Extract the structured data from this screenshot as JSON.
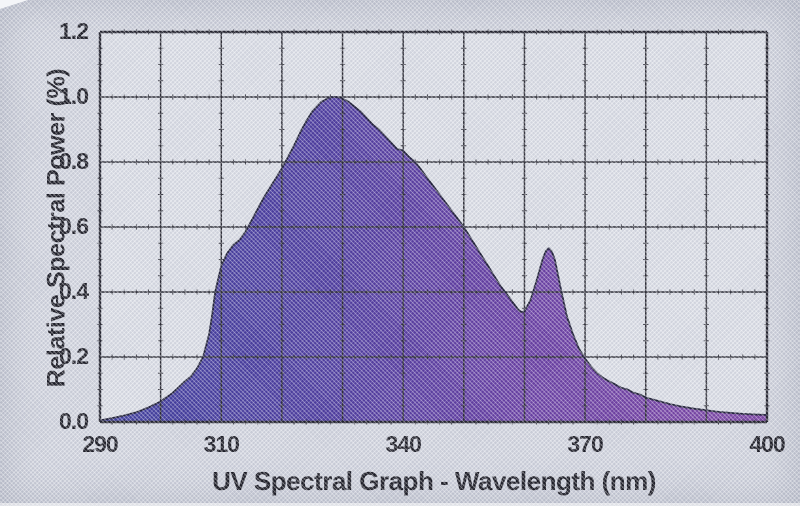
{
  "colors": {
    "page_background": "#d4d7e1",
    "plot_background": "#dde0e8",
    "grid_line": "#26262f",
    "plot_border": "#1d1d28",
    "curve_line": "#1a1a33",
    "fill_gradient_left": "#3b3a9e",
    "fill_gradient_mid": "#5639a1",
    "fill_gradient_right": "#7d42a6",
    "text": "#15151e"
  },
  "chart_data": {
    "type": "area",
    "title": "UV Spectral Graph - Wavelength (nm)",
    "xlabel": "UV Spectral Graph - Wavelength (nm)",
    "ylabel": "Relative Spectral Power (%)",
    "xlim": [
      290,
      400
    ],
    "ylim": [
      0,
      1.2
    ],
    "x_tick_labels": [
      "290",
      "310",
      "340",
      "370",
      "400"
    ],
    "x_tick_values": [
      290,
      310,
      340,
      370,
      400
    ],
    "y_tick_labels": [
      "0.0",
      "0.2",
      "0.4",
      "0.6",
      "0.8",
      "1.0",
      "1.2"
    ],
    "y_tick_values": [
      0,
      0.2,
      0.4,
      0.6,
      0.8,
      1.0,
      1.2
    ],
    "x_major_grid_step": 10,
    "y_major_grid_step": 0.2,
    "x_minor_tick_step": 2,
    "y_minor_tick_step": 0.05,
    "grid": true,
    "legend": null,
    "features": {
      "main_peak": {
        "x": 329,
        "y": 1.0
      },
      "shoulder": {
        "x": 312,
        "y": 0.55
      },
      "dip": {
        "x": 360,
        "y": 0.34
      },
      "secondary_peak": {
        "x": 364,
        "y": 0.535
      }
    },
    "x": [
      290,
      292,
      294,
      296,
      298,
      300,
      302,
      304,
      305,
      306,
      307,
      308,
      308.5,
      309,
      309.5,
      310,
      311,
      312,
      313,
      314,
      315,
      316,
      317,
      318,
      319,
      320,
      321,
      322,
      323,
      324,
      325,
      326,
      326.5,
      327,
      328,
      329,
      330,
      331,
      332,
      333,
      334,
      335,
      336,
      337,
      338,
      339,
      340,
      341,
      342,
      343,
      344,
      345,
      346,
      347,
      348,
      349,
      350,
      351,
      352,
      353,
      354,
      355,
      356,
      357,
      358,
      359,
      359.5,
      360,
      361,
      362,
      363,
      363.5,
      364,
      364.5,
      365,
      366,
      367,
      368,
      369,
      370,
      371,
      372,
      373,
      374,
      375,
      376,
      377,
      378,
      379,
      380,
      382,
      384,
      386,
      388,
      390,
      392,
      394,
      396,
      398,
      400
    ],
    "y": [
      0.005,
      0.012,
      0.02,
      0.03,
      0.045,
      0.063,
      0.09,
      0.125,
      0.14,
      0.165,
      0.2,
      0.27,
      0.33,
      0.4,
      0.44,
      0.48,
      0.52,
      0.545,
      0.56,
      0.585,
      0.62,
      0.655,
      0.69,
      0.72,
      0.75,
      0.78,
      0.815,
      0.85,
      0.89,
      0.925,
      0.955,
      0.975,
      0.985,
      0.99,
      1.0,
      1.0,
      0.995,
      0.985,
      0.97,
      0.955,
      0.935,
      0.915,
      0.9,
      0.88,
      0.86,
      0.84,
      0.835,
      0.815,
      0.8,
      0.775,
      0.75,
      0.725,
      0.7,
      0.675,
      0.65,
      0.625,
      0.6,
      0.57,
      0.54,
      0.51,
      0.48,
      0.45,
      0.42,
      0.395,
      0.37,
      0.345,
      0.338,
      0.34,
      0.375,
      0.435,
      0.5,
      0.525,
      0.535,
      0.525,
      0.5,
      0.41,
      0.325,
      0.27,
      0.225,
      0.195,
      0.17,
      0.15,
      0.135,
      0.125,
      0.115,
      0.105,
      0.1,
      0.09,
      0.085,
      0.075,
      0.065,
      0.055,
      0.047,
      0.041,
      0.036,
      0.031,
      0.028,
      0.025,
      0.023,
      0.022
    ]
  }
}
